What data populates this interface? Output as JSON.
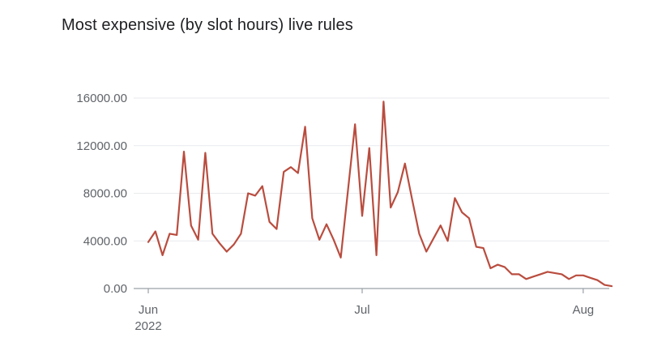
{
  "chart": {
    "title": "Most expensive (by slot hours) live rules"
  },
  "chart_data": {
    "type": "line",
    "title": "Most expensive (by slot hours) live rules",
    "xlabel": "",
    "ylabel": "",
    "ylim": [
      0,
      16000
    ],
    "grid": true,
    "legend": "none",
    "y_ticks": [
      "0.00",
      "4000.00",
      "8000.00",
      "12000.00",
      "16000.00"
    ],
    "x_ticks": [
      {
        "label": "Jun",
        "sublabel": "2022",
        "date": "2022-06-01"
      },
      {
        "label": "Jul",
        "sublabel": "",
        "date": "2022-07-01"
      },
      {
        "label": "Aug",
        "sublabel": "",
        "date": "2022-08-01"
      }
    ],
    "series": [
      {
        "color": "#b94d3f",
        "x": [
          "2022-06-01",
          "2022-06-02",
          "2022-06-03",
          "2022-06-04",
          "2022-06-05",
          "2022-06-06",
          "2022-06-07",
          "2022-06-08",
          "2022-06-09",
          "2022-06-10",
          "2022-06-11",
          "2022-06-12",
          "2022-06-13",
          "2022-06-14",
          "2022-06-15",
          "2022-06-16",
          "2022-06-17",
          "2022-06-18",
          "2022-06-19",
          "2022-06-20",
          "2022-06-21",
          "2022-06-22",
          "2022-06-23",
          "2022-06-24",
          "2022-06-25",
          "2022-06-26",
          "2022-06-27",
          "2022-06-28",
          "2022-06-29",
          "2022-06-30",
          "2022-07-01",
          "2022-07-02",
          "2022-07-03",
          "2022-07-04",
          "2022-07-05",
          "2022-07-06",
          "2022-07-07",
          "2022-07-08",
          "2022-07-09",
          "2022-07-10",
          "2022-07-11",
          "2022-07-12",
          "2022-07-13",
          "2022-07-14",
          "2022-07-15",
          "2022-07-16",
          "2022-07-17",
          "2022-07-18",
          "2022-07-19",
          "2022-07-20",
          "2022-07-21",
          "2022-07-22",
          "2022-07-23",
          "2022-07-24",
          "2022-07-25",
          "2022-07-26",
          "2022-07-27",
          "2022-07-28",
          "2022-07-29",
          "2022-07-30",
          "2022-07-31",
          "2022-08-01",
          "2022-08-02",
          "2022-08-03",
          "2022-08-04",
          "2022-08-05"
        ],
        "values": [
          3900,
          4800,
          2800,
          4600,
          4500,
          11500,
          5300,
          4100,
          11400,
          4600,
          3800,
          3100,
          3700,
          4600,
          8000,
          7800,
          8600,
          5600,
          5000,
          9800,
          10200,
          9700,
          13600,
          5900,
          4100,
          5400,
          4100,
          2600,
          8200,
          13800,
          6100,
          11800,
          2800,
          15700,
          6800,
          8100,
          10500,
          7500,
          4600,
          3100,
          4200,
          5300,
          4000,
          7600,
          6400,
          5900,
          3500,
          3400,
          1700,
          2000,
          1800,
          1200,
          1200,
          800,
          1000,
          1200,
          1400,
          1300,
          1200,
          800,
          1100,
          1100,
          900,
          700,
          300,
          200
        ]
      }
    ]
  }
}
